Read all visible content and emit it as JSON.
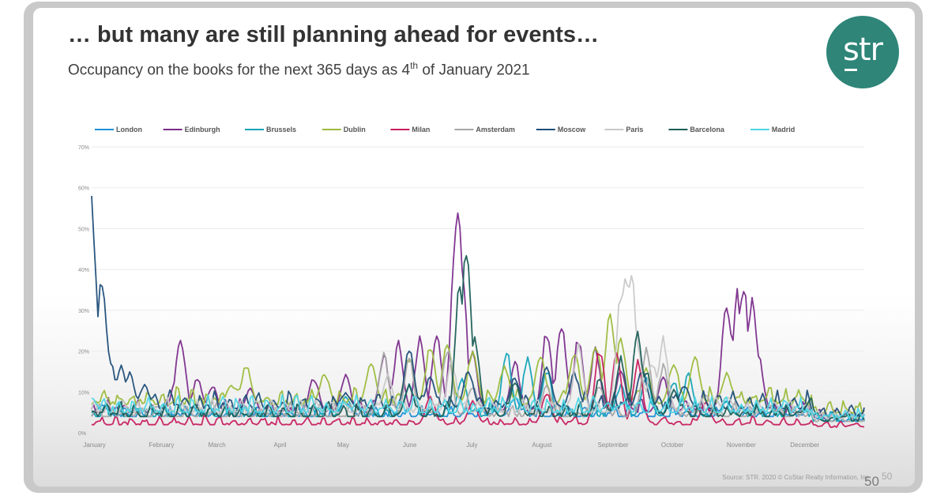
{
  "slide": {
    "title": "… but many are still planning ahead for events…",
    "subtitle_main": "Occupancy on the books for the next 365 days as 4",
    "subtitle_sup": "th",
    "subtitle_end": " of January 2021",
    "logo_text": "str",
    "source": "Source: STR. 2020 © CoStar Realty Information, Inc.",
    "page_number": "50",
    "page_number_ghost": "50"
  },
  "chart_data": {
    "type": "line",
    "y_unit": "%",
    "ylim": [
      0,
      70
    ],
    "yticks": [
      "0%",
      "10%",
      "20%",
      "30%",
      "40%",
      "50%",
      "60%",
      "70%"
    ],
    "ytick_values": [
      0,
      10,
      20,
      30,
      40,
      50,
      60,
      70
    ],
    "xlim": [
      0,
      365
    ],
    "month_labels": [
      "January",
      "February",
      "March",
      "April",
      "May",
      "June",
      "July",
      "August",
      "September",
      "October",
      "November",
      "December"
    ],
    "month_label_days": [
      2,
      33,
      61,
      92,
      122,
      153,
      183,
      214,
      245,
      275,
      306,
      336
    ],
    "grid": true,
    "legend_position": "top",
    "series": [
      {
        "name": "London",
        "color": "#1f8fd6",
        "base": 4,
        "amp": 2,
        "peaks": [
          [
            5,
            7
          ],
          [
            120,
            8
          ],
          [
            200,
            9
          ],
          [
            300,
            8
          ],
          [
            340,
            6
          ]
        ]
      },
      {
        "name": "Edinburgh",
        "color": "#7b2d8b",
        "base": 5,
        "amp": 2.5,
        "peaks": [
          [
            40,
            14
          ],
          [
            42,
            25
          ],
          [
            50,
            14
          ],
          [
            57,
            12
          ],
          [
            75,
            11
          ],
          [
            105,
            14
          ],
          [
            120,
            15
          ],
          [
            138,
            20
          ],
          [
            145,
            23
          ],
          [
            155,
            24
          ],
          [
            163,
            26
          ],
          [
            172,
            50
          ],
          [
            173,
            62
          ],
          [
            175,
            40
          ],
          [
            180,
            20
          ],
          [
            200,
            18
          ],
          [
            215,
            26
          ],
          [
            222,
            28
          ],
          [
            230,
            24
          ],
          [
            238,
            22
          ],
          [
            250,
            16
          ],
          [
            270,
            14
          ],
          [
            300,
            35
          ],
          [
            305,
            36
          ],
          [
            308,
            37
          ],
          [
            312,
            34
          ],
          [
            315,
            20
          ],
          [
            360,
            6
          ]
        ]
      },
      {
        "name": "Brussels",
        "color": "#12a3b8",
        "base": 4,
        "amp": 2.5,
        "peaks": [
          [
            120,
            9
          ],
          [
            150,
            12
          ],
          [
            175,
            14
          ],
          [
            196,
            21
          ],
          [
            206,
            19
          ],
          [
            215,
            16
          ],
          [
            250,
            12
          ],
          [
            262,
            14
          ],
          [
            275,
            13
          ],
          [
            282,
            15
          ],
          [
            300,
            8
          ]
        ]
      },
      {
        "name": "Dublin",
        "color": "#9bbb3b",
        "base": 7,
        "amp": 3,
        "peaks": [
          [
            66,
            12
          ],
          [
            73,
            17
          ],
          [
            110,
            15
          ],
          [
            132,
            18
          ],
          [
            150,
            19
          ],
          [
            160,
            22
          ],
          [
            168,
            23
          ],
          [
            180,
            21
          ],
          [
            195,
            17
          ],
          [
            212,
            20
          ],
          [
            228,
            21
          ],
          [
            238,
            23
          ],
          [
            245,
            30
          ],
          [
            250,
            24
          ],
          [
            262,
            16
          ],
          [
            275,
            18
          ],
          [
            285,
            19
          ],
          [
            300,
            15
          ],
          [
            320,
            8
          ]
        ]
      },
      {
        "name": "Milan",
        "color": "#c71e5e",
        "base": 2,
        "amp": 1.5,
        "peaks": [
          [
            160,
            9
          ],
          [
            180,
            8
          ],
          [
            215,
            10
          ],
          [
            240,
            22
          ],
          [
            248,
            21
          ],
          [
            258,
            18
          ],
          [
            290,
            8
          ],
          [
            360,
            3
          ]
        ]
      },
      {
        "name": "Amsterdam",
        "color": "#a6a6a6",
        "base": 4,
        "amp": 2.5,
        "peaks": [
          [
            138,
            20
          ],
          [
            150,
            19
          ],
          [
            168,
            22
          ],
          [
            180,
            12
          ],
          [
            215,
            12
          ],
          [
            240,
            12
          ],
          [
            262,
            21
          ],
          [
            270,
            17
          ],
          [
            290,
            10
          ],
          [
            320,
            7
          ]
        ]
      },
      {
        "name": "Moscow",
        "color": "#1f4e79",
        "base": 6,
        "amp": 3,
        "peaks": [
          [
            0,
            59
          ],
          [
            5,
            40
          ],
          [
            7,
            22
          ],
          [
            9,
            18
          ],
          [
            14,
            17
          ],
          [
            18,
            15
          ],
          [
            25,
            12
          ],
          [
            40,
            7
          ],
          [
            120,
            10
          ],
          [
            150,
            21
          ],
          [
            160,
            14
          ],
          [
            178,
            16
          ],
          [
            200,
            14
          ],
          [
            215,
            17
          ],
          [
            228,
            15
          ],
          [
            260,
            16
          ],
          [
            280,
            12
          ],
          [
            310,
            6
          ]
        ]
      },
      {
        "name": "Paris",
        "color": "#c8c8c8",
        "base": 5,
        "amp": 2.5,
        "peaks": [
          [
            140,
            15
          ],
          [
            170,
            18
          ],
          [
            230,
            22
          ],
          [
            250,
            35
          ],
          [
            252,
            42
          ],
          [
            255,
            40
          ],
          [
            258,
            22
          ],
          [
            265,
            18
          ],
          [
            270,
            24
          ],
          [
            300,
            9
          ],
          [
            320,
            6
          ]
        ]
      },
      {
        "name": "Barcelona",
        "color": "#1b5e57",
        "base": 4,
        "amp": 2.5,
        "peaks": [
          [
            150,
            12
          ],
          [
            174,
            38
          ],
          [
            177,
            47
          ],
          [
            181,
            25
          ],
          [
            200,
            13
          ],
          [
            240,
            14
          ],
          [
            250,
            19
          ],
          [
            258,
            26
          ],
          [
            262,
            16
          ],
          [
            275,
            11
          ],
          [
            340,
            9
          ],
          [
            355,
            6
          ]
        ]
      },
      {
        "name": "Madrid",
        "color": "#4ed6e4",
        "base": 5,
        "amp": 3,
        "peaks": [
          [
            0,
            9
          ],
          [
            120,
            7
          ],
          [
            200,
            9
          ],
          [
            250,
            7
          ],
          [
            300,
            5
          ],
          [
            360,
            3
          ]
        ]
      }
    ]
  }
}
